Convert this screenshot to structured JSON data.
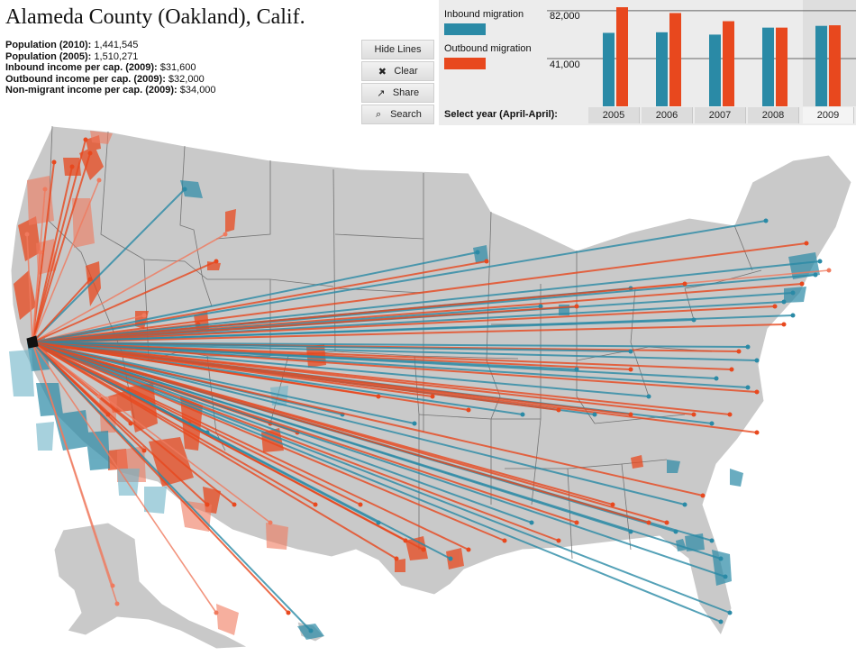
{
  "header": {
    "title": "Alameda County (Oakland), Calif.",
    "stats": [
      {
        "label": "Population (2010):",
        "value": "1,441,545"
      },
      {
        "label": "Population (2005):",
        "value": "1,510,271"
      },
      {
        "label": "Inbound income per cap. (2009):",
        "value": "$31,600"
      },
      {
        "label": "Outbound income per cap. (2009):",
        "value": "$32,000"
      },
      {
        "label": "Non-migrant income per cap. (2009):",
        "value": "$34,000"
      }
    ]
  },
  "controls": {
    "hide_lines": "Hide Lines",
    "clear": "Clear",
    "share": "Share",
    "search": "Search",
    "clear_icon": "x-icon",
    "share_icon": "share-icon",
    "search_icon": "search-icon"
  },
  "legend": {
    "inbound": "Inbound migration",
    "outbound": "Outbound migration"
  },
  "year_selector": {
    "label": "Select year (April-April):",
    "years": [
      "2005",
      "2006",
      "2007",
      "2008",
      "2009"
    ],
    "selected": "2009"
  },
  "colors": {
    "inbound": "#2a8aa6",
    "outbound": "#e8481e",
    "outbound_light": "#f07a5e",
    "inbound_light": "#6eb4c8",
    "land": "#c9c9c9",
    "border": "#ffffff"
  },
  "chart_data": {
    "type": "bar",
    "categories": [
      "2005",
      "2006",
      "2007",
      "2008",
      "2009"
    ],
    "series": [
      {
        "name": "Inbound migration",
        "values": [
          63000,
          63500,
          61500,
          67500,
          69000
        ]
      },
      {
        "name": "Outbound migration",
        "values": [
          85000,
          80000,
          73000,
          67500,
          69500
        ]
      }
    ],
    "yticks": [
      {
        "value": 82000,
        "label": "82,000"
      },
      {
        "value": 41000,
        "label": "41,000"
      }
    ],
    "ylim": [
      0,
      85000
    ],
    "grid": true
  },
  "map": {
    "origin": "Alameda County (Oakland), Calif."
  }
}
